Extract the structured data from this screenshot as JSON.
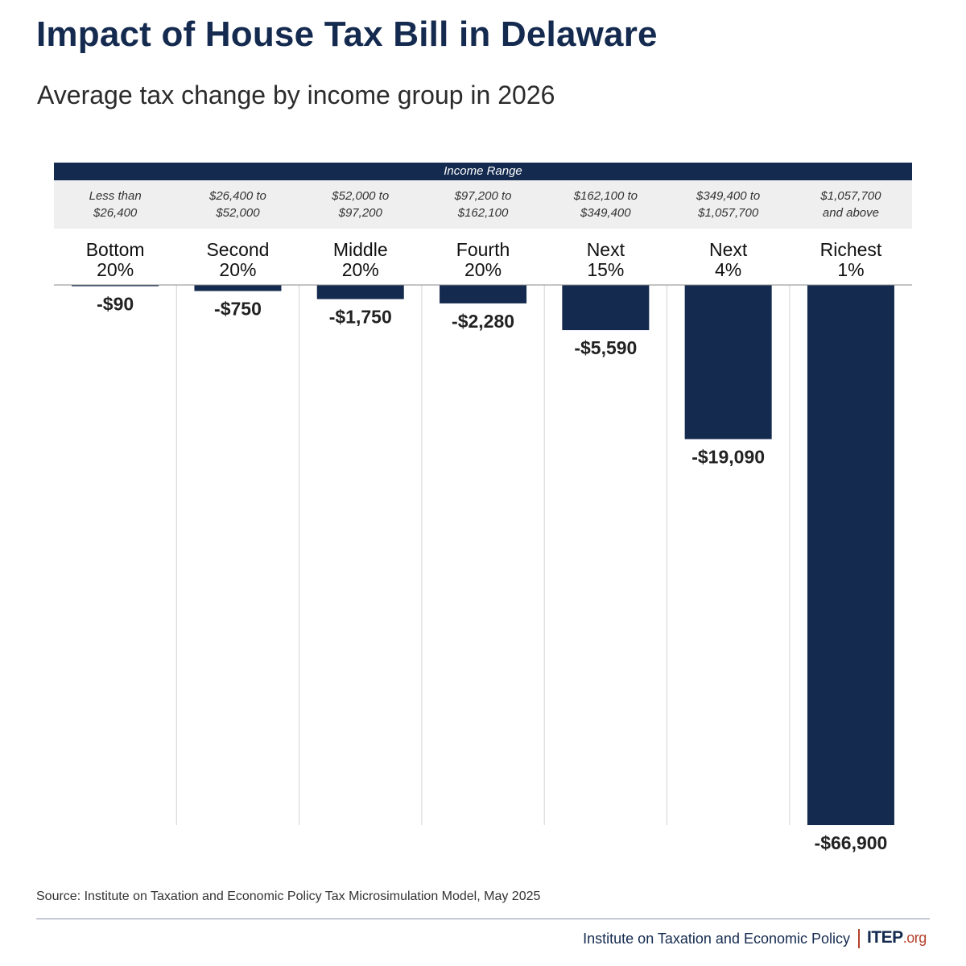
{
  "header": {
    "title": "Impact of House Tax Bill in Delaware",
    "subtitle": "Average tax change by income group in 2026"
  },
  "chart_data": {
    "type": "bar",
    "title": "Impact of House Tax Bill in Delaware",
    "subtitle": "Average tax change by income group in 2026",
    "header_label": "Income Range",
    "categories": [
      "Bottom 20%",
      "Second 20%",
      "Middle 20%",
      "Fourth 20%",
      "Next 15%",
      "Next 4%",
      "Richest 1%"
    ],
    "category_lines": [
      [
        "Bottom",
        "20%"
      ],
      [
        "Second",
        "20%"
      ],
      [
        "Middle",
        "20%"
      ],
      [
        "Fourth",
        "20%"
      ],
      [
        "Next",
        "15%"
      ],
      [
        "Next",
        "4%"
      ],
      [
        "Richest",
        "1%"
      ]
    ],
    "income_ranges": [
      [
        "Less than",
        "$26,400"
      ],
      [
        "$26,400 to",
        "$52,000"
      ],
      [
        "$52,000 to",
        "$97,200"
      ],
      [
        "$97,200 to",
        "$162,100"
      ],
      [
        "$162,100 to",
        "$349,400"
      ],
      [
        "$349,400 to",
        "$1,057,700"
      ],
      [
        "$1,057,700",
        "and above"
      ]
    ],
    "values": [
      -90,
      -750,
      -1750,
      -2280,
      -5590,
      -19090,
      -66900
    ],
    "value_labels": [
      "-$90",
      "-$750",
      "-$1,750",
      "-$2,280",
      "-$5,590",
      "-$19,090",
      "-$66,900"
    ],
    "ylim": [
      -66900,
      0
    ],
    "bar_color": "#142a4f"
  },
  "footer": {
    "source": "Source: Institute on Taxation and Economic Policy Tax Microsimulation Model, May 2025",
    "org": "Institute on Taxation and Economic Policy",
    "logo_main": "ITEP",
    "logo_suffix": ".org"
  }
}
